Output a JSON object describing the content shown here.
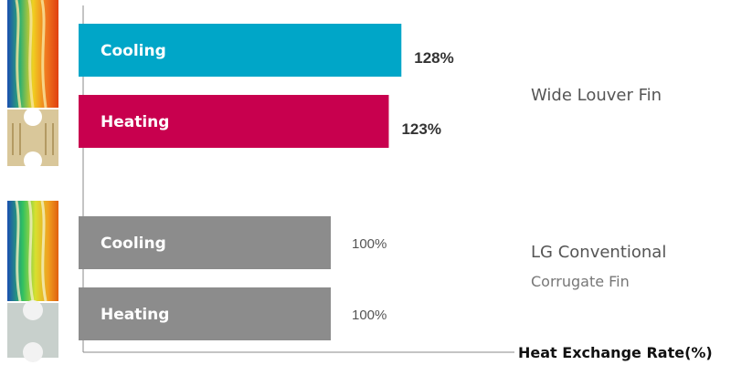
{
  "chart_data": {
    "type": "bar",
    "orientation": "horizontal",
    "xlabel": "Heat Exchange Rate(%)",
    "xlim": [
      0,
      150
    ],
    "grid": false,
    "groups": [
      {
        "name": "Wide Louver Fin",
        "subtitle": "",
        "bars": [
          {
            "label": "Cooling",
            "value": 128,
            "value_label": "128%",
            "color": "#00A6C8"
          },
          {
            "label": "Heating",
            "value": 123,
            "value_label": "123%",
            "color": "#C8004E"
          }
        ]
      },
      {
        "name": "LG Conventional",
        "subtitle": "Corrugate Fin",
        "bars": [
          {
            "label": "Cooling",
            "value": 100,
            "value_label": "100%",
            "color": "#8C8C8C"
          },
          {
            "label": "Heating",
            "value": 100,
            "value_label": "100%",
            "color": "#8C8C8C"
          }
        ]
      }
    ]
  }
}
